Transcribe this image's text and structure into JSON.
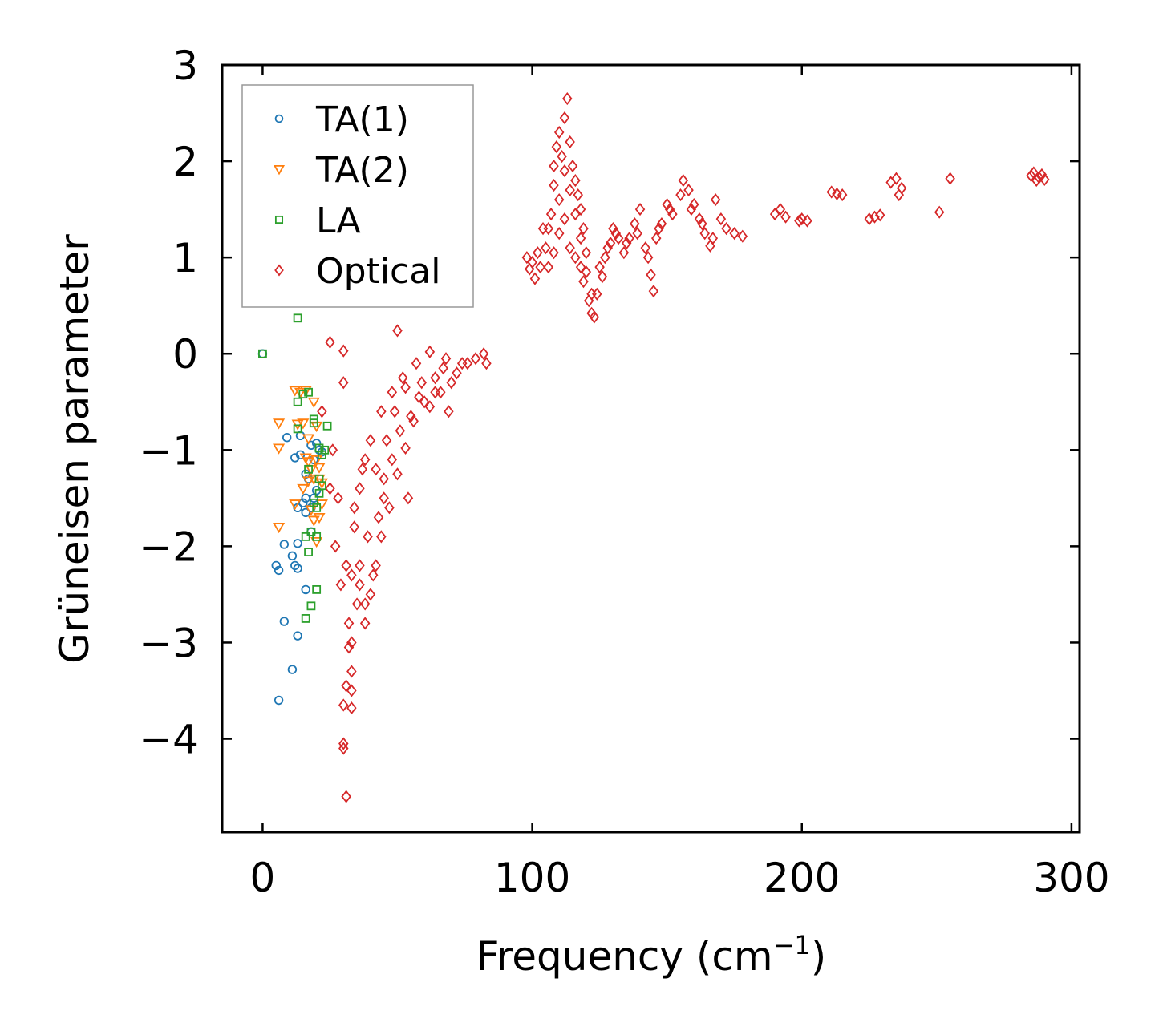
{
  "chart_data": {
    "type": "scatter",
    "title": "",
    "xlabel": "Frequency (cm",
    "xlabel_sup": "−1",
    "xlabel_suffix": ")",
    "ylabel": "Grüneisen parameter",
    "xlim": [
      -15,
      303
    ],
    "ylim": [
      -4.97,
      3.0
    ],
    "x_ticks": [
      0,
      100,
      200,
      300
    ],
    "x_tick_labels": [
      "0",
      "100",
      "200",
      "300"
    ],
    "y_ticks": [
      -4,
      -3,
      -2,
      -1,
      0,
      1,
      2,
      3
    ],
    "y_tick_labels": [
      "−4",
      "−3",
      "−2",
      "−1",
      "0",
      "1",
      "2",
      "3"
    ],
    "grid": false,
    "legend_position": "top-left",
    "series": [
      {
        "name": "TA(1)",
        "marker": "circle",
        "color": "#1f77b4",
        "points": [
          [
            0,
            0
          ],
          [
            5,
            -2.2
          ],
          [
            6,
            -2.25
          ],
          [
            6,
            -3.6
          ],
          [
            8,
            -1.98
          ],
          [
            8,
            -2.78
          ],
          [
            9,
            -0.87
          ],
          [
            11,
            -2.1
          ],
          [
            11,
            -3.28
          ],
          [
            12,
            -2.2
          ],
          [
            13,
            -2.93
          ],
          [
            13,
            -2.23
          ],
          [
            13,
            -1.97
          ],
          [
            13,
            -1.6
          ],
          [
            14,
            -1.05
          ],
          [
            14,
            -0.85
          ],
          [
            16,
            -1.25
          ],
          [
            16,
            -1.65
          ],
          [
            16,
            -1.5
          ],
          [
            16,
            -2.45
          ],
          [
            17,
            -1.3
          ],
          [
            18,
            -1.6
          ],
          [
            18,
            -0.95
          ],
          [
            19,
            -1.5
          ],
          [
            19,
            -1.1
          ],
          [
            20,
            -0.93
          ],
          [
            20,
            -1.42
          ],
          [
            21,
            -1.0
          ],
          [
            22,
            -1.02
          ],
          [
            18,
            -1.85
          ],
          [
            15,
            -1.55
          ],
          [
            12,
            -1.08
          ]
        ]
      },
      {
        "name": "TA(2)",
        "marker": "triangle-down",
        "color": "#ff7f0e",
        "points": [
          [
            6,
            -0.72
          ],
          [
            6,
            -1.8
          ],
          [
            6,
            -0.98
          ],
          [
            12,
            -0.38
          ],
          [
            12,
            -1.56
          ],
          [
            13,
            -0.73
          ],
          [
            14,
            -0.4
          ],
          [
            15,
            -0.72
          ],
          [
            16,
            -0.38
          ],
          [
            16,
            -1.08
          ],
          [
            17,
            -1.32
          ],
          [
            17,
            -1.12
          ],
          [
            18,
            -1.62
          ],
          [
            19,
            -0.5
          ],
          [
            19,
            -1.3
          ],
          [
            20,
            -1.1
          ],
          [
            20,
            -1.95
          ],
          [
            21,
            -1.3
          ],
          [
            21,
            -1.7
          ],
          [
            22,
            -1.34
          ],
          [
            17,
            -0.88
          ],
          [
            18,
            -1.2
          ],
          [
            15,
            -1.4
          ],
          [
            21,
            -1.18
          ],
          [
            22,
            -1.56
          ],
          [
            19,
            -1.73
          ],
          [
            20,
            -0.75
          ]
        ]
      },
      {
        "name": "LA",
        "marker": "square",
        "color": "#2ca02c",
        "points": [
          [
            0,
            0
          ],
          [
            13,
            0.37
          ],
          [
            13,
            -0.5
          ],
          [
            13,
            -0.78
          ],
          [
            15,
            -0.42
          ],
          [
            16,
            -1.9
          ],
          [
            17,
            -2.06
          ],
          [
            17,
            -1.2
          ],
          [
            17,
            -0.4
          ],
          [
            18,
            -2.62
          ],
          [
            18,
            -1.85
          ],
          [
            19,
            -0.72
          ],
          [
            19,
            -0.68
          ],
          [
            20,
            -1.6
          ],
          [
            20,
            -2.45
          ],
          [
            21,
            -1.3
          ],
          [
            21,
            -0.98
          ],
          [
            22,
            -1.37
          ],
          [
            23,
            -1.0
          ],
          [
            24,
            -0.75
          ],
          [
            20,
            -1.9
          ],
          [
            16,
            -2.75
          ],
          [
            19,
            -1.55
          ],
          [
            22,
            -1.05
          ],
          [
            21,
            -1.45
          ]
        ]
      },
      {
        "name": "Optical",
        "marker": "diamond",
        "color": "#d62728",
        "points": [
          [
            25,
            0.12
          ],
          [
            30,
            0.03
          ],
          [
            50,
            0.24
          ],
          [
            22,
            -0.6
          ],
          [
            26,
            -1.0
          ],
          [
            28,
            -1.5
          ],
          [
            30,
            -0.3
          ],
          [
            30,
            -3.65
          ],
          [
            30,
            -4.05
          ],
          [
            30,
            -4.1
          ],
          [
            31,
            -4.6
          ],
          [
            31,
            -3.45
          ],
          [
            32,
            -3.05
          ],
          [
            33,
            -3.0
          ],
          [
            33,
            -3.3
          ],
          [
            33,
            -3.68
          ],
          [
            33,
            -3.5
          ],
          [
            32,
            -2.8
          ],
          [
            35,
            -2.6
          ],
          [
            36,
            -2.4
          ],
          [
            38,
            -2.8
          ],
          [
            40,
            -2.5
          ],
          [
            42,
            -2.2
          ],
          [
            44,
            -1.9
          ],
          [
            47,
            -1.6
          ],
          [
            50,
            -1.25
          ],
          [
            53,
            -0.98
          ],
          [
            56,
            -0.7
          ],
          [
            60,
            -0.5
          ],
          [
            54,
            -1.5
          ],
          [
            33,
            -2.3
          ],
          [
            34,
            -1.8
          ],
          [
            36,
            -1.4
          ],
          [
            38,
            -1.1
          ],
          [
            40,
            -0.9
          ],
          [
            44,
            -0.6
          ],
          [
            48,
            -0.4
          ],
          [
            52,
            -0.25
          ],
          [
            57,
            -0.1
          ],
          [
            62,
            0.02
          ],
          [
            67,
            -0.15
          ],
          [
            72,
            -0.2
          ],
          [
            76,
            -0.1
          ],
          [
            82,
            0.0
          ],
          [
            83,
            -0.1
          ],
          [
            62,
            -0.55
          ],
          [
            66,
            -0.4
          ],
          [
            70,
            -0.3
          ],
          [
            45,
            -1.3
          ],
          [
            48,
            -1.1
          ],
          [
            51,
            -0.8
          ],
          [
            55,
            -0.65
          ],
          [
            58,
            -0.45
          ],
          [
            64,
            -0.25
          ],
          [
            68,
            -0.05
          ],
          [
            25,
            -1.4
          ],
          [
            27,
            -2.0
          ],
          [
            29,
            -2.4
          ],
          [
            31,
            -2.2
          ],
          [
            34,
            -1.6
          ],
          [
            37,
            -1.2
          ],
          [
            39,
            -1.9
          ],
          [
            41,
            -2.3
          ],
          [
            43,
            -1.7
          ],
          [
            45,
            -1.5
          ],
          [
            38,
            -2.6
          ],
          [
            36,
            -2.2
          ],
          [
            42,
            -1.2
          ],
          [
            46,
            -0.9
          ],
          [
            49,
            -0.6
          ],
          [
            53,
            -0.35
          ],
          [
            59,
            -0.3
          ],
          [
            64,
            -0.4
          ],
          [
            69,
            -0.6
          ],
          [
            74,
            -0.1
          ],
          [
            79,
            -0.05
          ],
          [
            98,
            1.0
          ],
          [
            99,
            0.88
          ],
          [
            101,
            0.78
          ],
          [
            103,
            0.9
          ],
          [
            105,
            1.1
          ],
          [
            106,
            1.3
          ],
          [
            107,
            1.45
          ],
          [
            108,
            1.75
          ],
          [
            108,
            1.95
          ],
          [
            109,
            2.15
          ],
          [
            110,
            2.3
          ],
          [
            111,
            2.05
          ],
          [
            112,
            2.45
          ],
          [
            113,
            2.65
          ],
          [
            114,
            2.2
          ],
          [
            115,
            1.95
          ],
          [
            116,
            1.8
          ],
          [
            117,
            1.65
          ],
          [
            118,
            1.5
          ],
          [
            119,
            1.3
          ],
          [
            120,
            1.05
          ],
          [
            119,
            0.75
          ],
          [
            121,
            0.55
          ],
          [
            122,
            0.42
          ],
          [
            123,
            0.38
          ],
          [
            124,
            0.62
          ],
          [
            126,
            0.8
          ],
          [
            127,
            1.0
          ],
          [
            129,
            1.15
          ],
          [
            130,
            1.3
          ],
          [
            132,
            1.2
          ],
          [
            134,
            1.05
          ],
          [
            136,
            1.2
          ],
          [
            138,
            1.35
          ],
          [
            140,
            1.5
          ],
          [
            142,
            1.1
          ],
          [
            144,
            0.82
          ],
          [
            145,
            0.65
          ],
          [
            146,
            1.2
          ],
          [
            148,
            1.35
          ],
          [
            150,
            1.55
          ],
          [
            152,
            1.45
          ],
          [
            156,
            1.8
          ],
          [
            158,
            1.7
          ],
          [
            160,
            1.55
          ],
          [
            162,
            1.4
          ],
          [
            164,
            1.25
          ],
          [
            166,
            1.12
          ],
          [
            168,
            1.6
          ],
          [
            170,
            1.4
          ],
          [
            172,
            1.3
          ],
          [
            175,
            1.25
          ],
          [
            178,
            1.22
          ],
          [
            104,
            1.3
          ],
          [
            106,
            0.9
          ],
          [
            108,
            1.05
          ],
          [
            110,
            1.25
          ],
          [
            112,
            1.4
          ],
          [
            114,
            1.1
          ],
          [
            116,
            1.0
          ],
          [
            118,
            0.9
          ],
          [
            102,
            1.05
          ],
          [
            100,
            0.95
          ],
          [
            110,
            1.6
          ],
          [
            112,
            1.9
          ],
          [
            114,
            1.7
          ],
          [
            116,
            1.45
          ],
          [
            118,
            1.2
          ],
          [
            120,
            0.85
          ],
          [
            122,
            0.62
          ],
          [
            125,
            0.9
          ],
          [
            128,
            1.1
          ],
          [
            131,
            1.25
          ],
          [
            135,
            1.15
          ],
          [
            139,
            1.25
          ],
          [
            143,
            1.0
          ],
          [
            147,
            1.3
          ],
          [
            151,
            1.5
          ],
          [
            155,
            1.65
          ],
          [
            159,
            1.5
          ],
          [
            163,
            1.35
          ],
          [
            167,
            1.2
          ],
          [
            190,
            1.45
          ],
          [
            192,
            1.5
          ],
          [
            194,
            1.42
          ],
          [
            199,
            1.38
          ],
          [
            200,
            1.4
          ],
          [
            202,
            1.38
          ],
          [
            211,
            1.68
          ],
          [
            213,
            1.66
          ],
          [
            215,
            1.65
          ],
          [
            225,
            1.4
          ],
          [
            227,
            1.42
          ],
          [
            229,
            1.44
          ],
          [
            233,
            1.78
          ],
          [
            235,
            1.82
          ],
          [
            236,
            1.65
          ],
          [
            237,
            1.72
          ],
          [
            251,
            1.47
          ],
          [
            255,
            1.82
          ],
          [
            285,
            1.85
          ],
          [
            286,
            1.88
          ],
          [
            287,
            1.8
          ],
          [
            288,
            1.83
          ],
          [
            289,
            1.86
          ],
          [
            290,
            1.81
          ]
        ]
      }
    ]
  }
}
